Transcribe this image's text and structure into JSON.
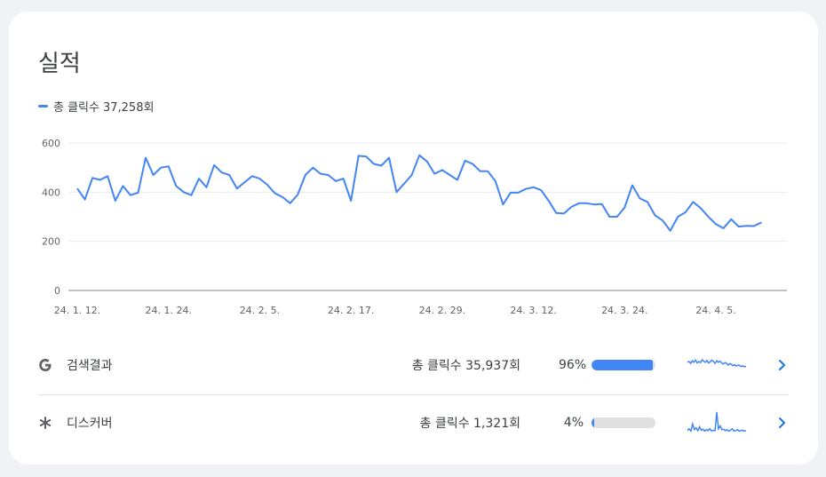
{
  "section": {
    "title": "실적"
  },
  "legend": {
    "label": "총 클릭수",
    "value": "37,258회",
    "color": "#4285f4"
  },
  "chart_data": {
    "type": "line",
    "title": "",
    "xlabel": "",
    "ylabel": "",
    "ylim": [
      0,
      600
    ],
    "yticks": [
      "600",
      "400",
      "200",
      "0"
    ],
    "xticks": [
      "24. 1. 12.",
      "24. 1. 24.",
      "24. 2. 5.",
      "24. 2. 17.",
      "24. 2. 29.",
      "24. 3. 12.",
      "24. 3. 24.",
      "24. 4. 5."
    ],
    "grid": true,
    "series": [
      {
        "name": "총 클릭수",
        "color": "#4285f4",
        "values": [
          415,
          370,
          458,
          450,
          465,
          365,
          425,
          388,
          398,
          540,
          470,
          500,
          505,
          425,
          400,
          388,
          455,
          420,
          510,
          480,
          470,
          415,
          440,
          465,
          455,
          430,
          395,
          380,
          355,
          390,
          470,
          500,
          475,
          470,
          445,
          455,
          365,
          548,
          545,
          515,
          508,
          540,
          400,
          435,
          470,
          550,
          525,
          475,
          490,
          470,
          450,
          528,
          515,
          485,
          485,
          445,
          350,
          398,
          398,
          413,
          420,
          408,
          365,
          315,
          313,
          340,
          355,
          355,
          350,
          352,
          300,
          300,
          338,
          428,
          375,
          360,
          305,
          285,
          243,
          300,
          318,
          360,
          335,
          300,
          270,
          253,
          290,
          260,
          263,
          262,
          277
        ]
      }
    ]
  },
  "rows": [
    {
      "icon": "google-g-icon",
      "label": "검색결과",
      "stat": "총 클릭수 35,937회",
      "percent_text": "96%",
      "percent": 96,
      "spark": [
        38,
        40,
        35,
        42,
        38,
        44,
        36,
        40,
        37,
        45,
        41,
        38,
        43,
        36,
        39,
        44,
        40,
        35,
        42,
        38,
        41,
        36,
        33,
        37,
        35,
        30,
        34,
        32,
        28,
        31,
        27,
        30,
        29,
        26,
        28,
        25,
        27
      ]
    },
    {
      "icon": "discover-asterisk-icon",
      "label": "디스커버",
      "stat": "총 클릭수 1,321회",
      "percent_text": "4%",
      "percent": 4,
      "spark": [
        6,
        10,
        5,
        20,
        8,
        12,
        6,
        14,
        7,
        9,
        5,
        8,
        6,
        10,
        5,
        7,
        6,
        45,
        10,
        16,
        8,
        9,
        6,
        8,
        5,
        7,
        10,
        5,
        6,
        8,
        5,
        6,
        7,
        5,
        6
      ]
    }
  ]
}
